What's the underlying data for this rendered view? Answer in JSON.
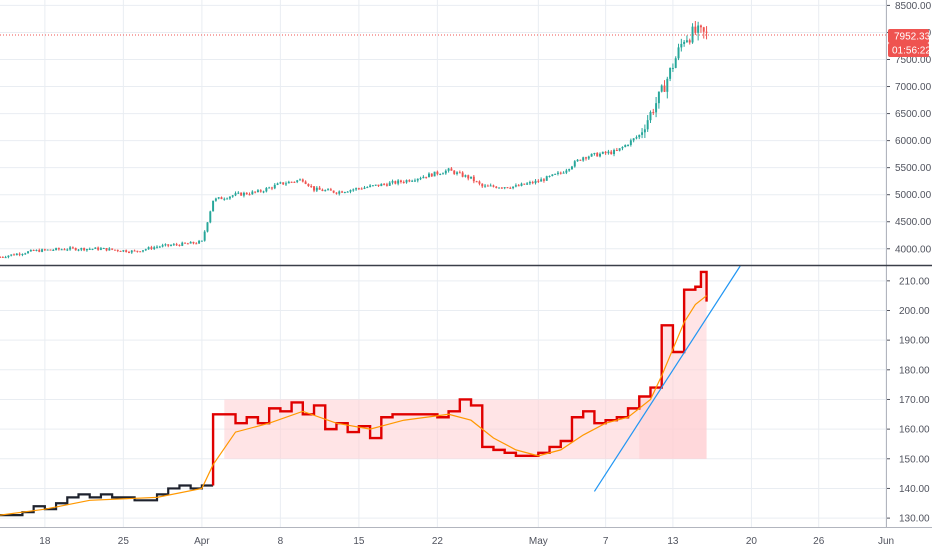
{
  "colors": {
    "up": "#26a69a",
    "down": "#ef5350",
    "price_line": "#ef5350",
    "indicator_pre": "#1e222d",
    "indicator_main": "#e00000",
    "indicator_ma": "#ff9800",
    "zone_fill": "#ffcdd2",
    "trendline": "#2196f3",
    "grid": "#e9edf2",
    "divider": "#3a3e49"
  },
  "price_badge": {
    "price": "7952.33",
    "countdown": "01:56:22"
  },
  "time_axis": {
    "start": "2019-03-14",
    "end": "2019-06-01",
    "labels": [
      {
        "date": "2019-03-18",
        "text": "18"
      },
      {
        "date": "2019-03-25",
        "text": "25"
      },
      {
        "date": "2019-04-01",
        "text": "Apr"
      },
      {
        "date": "2019-04-08",
        "text": "8"
      },
      {
        "date": "2019-04-15",
        "text": "15"
      },
      {
        "date": "2019-04-22",
        "text": "22"
      },
      {
        "date": "2019-05-01",
        "text": "May"
      },
      {
        "date": "2019-05-07",
        "text": "7"
      },
      {
        "date": "2019-05-13",
        "text": "13"
      },
      {
        "date": "2019-05-20",
        "text": "20"
      },
      {
        "date": "2019-05-26",
        "text": "26"
      },
      {
        "date": "2019-06-01",
        "text": "Jun"
      }
    ]
  },
  "chart_data": [
    {
      "type": "candlestick",
      "title": "",
      "ylim": [
        3700,
        8600
      ],
      "yticks": [
        "4000.00",
        "4500.00",
        "5000.00",
        "5500.00",
        "6000.00",
        "6500.00",
        "7000.00",
        "7500.00",
        "8000.00",
        "8500.00"
      ],
      "last_price": 7952.33,
      "trend": [
        [
          "2019-03-14",
          3850
        ],
        [
          "2019-03-17",
          3960
        ],
        [
          "2019-03-20",
          4000
        ],
        [
          "2019-03-23",
          4000
        ],
        [
          "2019-03-26",
          3950
        ],
        [
          "2019-03-28",
          4040
        ],
        [
          "2019-03-31",
          4100
        ],
        [
          "2019-04-01",
          4130
        ],
        [
          "2019-04-02",
          4900
        ],
        [
          "2019-04-04",
          5000
        ],
        [
          "2019-04-06",
          5050
        ],
        [
          "2019-04-08",
          5200
        ],
        [
          "2019-04-10",
          5280
        ],
        [
          "2019-04-11",
          5100
        ],
        [
          "2019-04-13",
          5050
        ],
        [
          "2019-04-16",
          5150
        ],
        [
          "2019-04-19",
          5250
        ],
        [
          "2019-04-23",
          5450
        ],
        [
          "2019-04-25",
          5300
        ],
        [
          "2019-04-26",
          5150
        ],
        [
          "2019-04-29",
          5150
        ],
        [
          "2019-05-01",
          5250
        ],
        [
          "2019-05-03",
          5400
        ],
        [
          "2019-05-05",
          5700
        ],
        [
          "2019-05-08",
          5800
        ],
        [
          "2019-05-10",
          6100
        ],
        [
          "2019-05-11",
          6500
        ],
        [
          "2019-05-12",
          6900
        ],
        [
          "2019-05-13",
          7400
        ],
        [
          "2019-05-14",
          7900
        ],
        [
          "2019-05-15",
          8000
        ],
        [
          "2019-05-16",
          7952
        ]
      ]
    },
    {
      "type": "line",
      "title": "",
      "ylim": [
        127,
        215
      ],
      "yticks": [
        "130.00",
        "140.00",
        "150.00",
        "160.00",
        "170.00",
        "180.00",
        "190.00",
        "200.00",
        "210.00"
      ],
      "zone": {
        "x0": "2019-04-03",
        "x1": "2019-05-16",
        "y0": 150,
        "y1": 170
      },
      "trendline": [
        [
          "2019-05-06",
          139
        ],
        [
          "2019-05-19",
          215
        ]
      ],
      "split_date": "2019-04-02",
      "steps": [
        [
          "2019-03-14",
          131
        ],
        [
          "2019-03-16",
          132
        ],
        [
          "2019-03-17",
          134
        ],
        [
          "2019-03-18",
          133
        ],
        [
          "2019-03-19",
          135
        ],
        [
          "2019-03-20",
          137
        ],
        [
          "2019-03-21",
          138
        ],
        [
          "2019-03-22",
          137
        ],
        [
          "2019-03-23",
          138
        ],
        [
          "2019-03-24",
          137
        ],
        [
          "2019-03-26",
          136
        ],
        [
          "2019-03-27",
          136
        ],
        [
          "2019-03-28",
          138
        ],
        [
          "2019-03-29",
          140
        ],
        [
          "2019-03-30",
          141
        ],
        [
          "2019-03-31",
          140
        ],
        [
          "2019-04-01",
          141
        ],
        [
          "2019-04-02",
          165
        ],
        [
          "2019-04-04",
          162
        ],
        [
          "2019-04-05",
          164
        ],
        [
          "2019-04-06",
          162
        ],
        [
          "2019-04-07",
          167
        ],
        [
          "2019-04-08",
          166
        ],
        [
          "2019-04-09",
          169
        ],
        [
          "2019-04-10",
          165
        ],
        [
          "2019-04-11",
          168
        ],
        [
          "2019-04-12",
          160
        ],
        [
          "2019-04-13",
          162
        ],
        [
          "2019-04-14",
          159
        ],
        [
          "2019-04-15",
          161
        ],
        [
          "2019-04-16",
          157
        ],
        [
          "2019-04-17",
          164
        ],
        [
          "2019-04-18",
          165
        ],
        [
          "2019-04-20",
          165
        ],
        [
          "2019-04-22",
          164
        ],
        [
          "2019-04-23",
          166
        ],
        [
          "2019-04-24",
          170
        ],
        [
          "2019-04-25",
          168
        ],
        [
          "2019-04-26",
          154
        ],
        [
          "2019-04-27",
          153
        ],
        [
          "2019-04-28",
          152
        ],
        [
          "2019-04-29",
          151
        ],
        [
          "2019-04-30",
          151
        ],
        [
          "2019-05-01",
          152
        ],
        [
          "2019-05-02",
          154
        ],
        [
          "2019-05-03",
          156
        ],
        [
          "2019-05-04",
          164
        ],
        [
          "2019-05-05",
          166
        ],
        [
          "2019-05-06",
          162
        ],
        [
          "2019-05-07",
          163
        ],
        [
          "2019-05-08",
          164
        ],
        [
          "2019-05-09",
          167
        ],
        [
          "2019-05-10",
          171
        ],
        [
          "2019-05-11",
          174
        ],
        [
          "2019-05-12",
          195
        ],
        [
          "2019-05-13",
          186
        ],
        [
          "2019-05-14",
          207
        ],
        [
          "2019-05-15",
          208
        ],
        [
          "2019-05-15.5",
          213
        ],
        [
          "2019-05-16",
          203
        ]
      ],
      "ma": [
        [
          "2019-03-14",
          131
        ],
        [
          "2019-03-18",
          133
        ],
        [
          "2019-03-22",
          136
        ],
        [
          "2019-03-28",
          137
        ],
        [
          "2019-04-01",
          140
        ],
        [
          "2019-04-02",
          148
        ],
        [
          "2019-04-04",
          159
        ],
        [
          "2019-04-07",
          162
        ],
        [
          "2019-04-10",
          166
        ],
        [
          "2019-04-13",
          162
        ],
        [
          "2019-04-16",
          160
        ],
        [
          "2019-04-19",
          163
        ],
        [
          "2019-04-23",
          165
        ],
        [
          "2019-04-25",
          163
        ],
        [
          "2019-04-27",
          157
        ],
        [
          "2019-04-29",
          153
        ],
        [
          "2019-05-01",
          151
        ],
        [
          "2019-05-03",
          153
        ],
        [
          "2019-05-05",
          158
        ],
        [
          "2019-05-07",
          162
        ],
        [
          "2019-05-09",
          164
        ],
        [
          "2019-05-11",
          170
        ],
        [
          "2019-05-12",
          178
        ],
        [
          "2019-05-13",
          187
        ],
        [
          "2019-05-14",
          196
        ],
        [
          "2019-05-15",
          202
        ],
        [
          "2019-05-16",
          205
        ]
      ]
    }
  ]
}
